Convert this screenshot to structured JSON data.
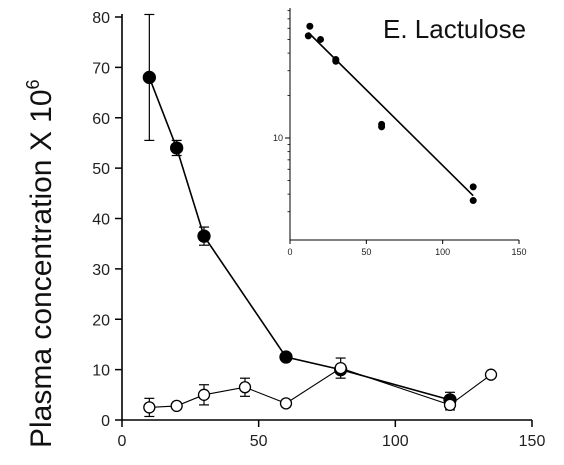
{
  "chart_data": [
    {
      "type": "line",
      "title": "E. Lactulose",
      "ylabel": "Plasma concentration X 10",
      "ylabel_sup": "6",
      "xlabel": "",
      "xlim": [
        0,
        150
      ],
      "ylim": [
        0,
        80
      ],
      "x_ticks": [
        0,
        50,
        100,
        150
      ],
      "y_ticks": [
        0,
        10,
        20,
        30,
        40,
        50,
        60,
        70,
        80
      ],
      "series": [
        {
          "marker": "filled-circle",
          "color": "#000000",
          "points": [
            {
              "x": 10,
              "y": 68,
              "err": 12.5
            },
            {
              "x": 20,
              "y": 54,
              "err": 1.5
            },
            {
              "x": 30,
              "y": 36.5,
              "err": 1.8
            },
            {
              "x": 60,
              "y": 12.5,
              "err": 0
            },
            {
              "x": 80,
              "y": 10,
              "err": 0
            },
            {
              "x": 120,
              "y": 4,
              "err": 1.5
            }
          ]
        },
        {
          "marker": "open-circle",
          "color": "#000000",
          "points": [
            {
              "x": 10,
              "y": 2.5,
              "err": 1.8
            },
            {
              "x": 20,
              "y": 2.8,
              "err": 0
            },
            {
              "x": 30,
              "y": 5,
              "err": 2
            },
            {
              "x": 45,
              "y": 6.5,
              "err": 1.8
            },
            {
              "x": 60,
              "y": 3.3,
              "err": 0
            },
            {
              "x": 80,
              "y": 10.3,
              "err": 2
            },
            {
              "x": 120,
              "y": 3,
              "err": 1
            },
            {
              "x": 135,
              "y": 9,
              "err": 0
            }
          ]
        }
      ]
    },
    {
      "type": "scatter",
      "scale": "log",
      "xlim": [
        0,
        150
      ],
      "x_ticks": [
        0,
        50,
        100,
        150
      ],
      "y_ticks": [
        10
      ],
      "points": [
        {
          "x": 12,
          "y": 53
        },
        {
          "x": 13,
          "y": 62
        },
        {
          "x": 20,
          "y": 50
        },
        {
          "x": 30,
          "y": 36
        },
        {
          "x": 30,
          "y": 35
        },
        {
          "x": 60,
          "y": 12.5
        },
        {
          "x": 60,
          "y": 12
        },
        {
          "x": 120,
          "y": 4.5
        },
        {
          "x": 120,
          "y": 3.6
        }
      ],
      "fit_line": [
        {
          "x": 12,
          "y": 56
        },
        {
          "x": 120,
          "y": 3.9
        }
      ]
    }
  ]
}
